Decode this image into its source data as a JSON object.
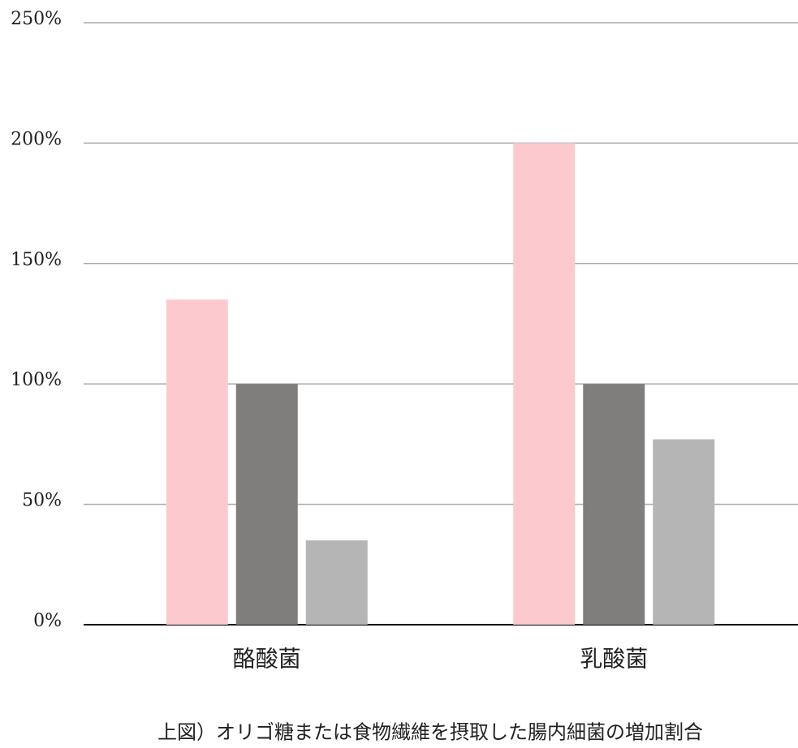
{
  "chart_data": {
    "type": "bar",
    "caption": "上図）オリゴ糖または食物繊維を摂取した腸内細菌の増加割合",
    "categories": [
      "酪酸菌",
      "乳酸菌"
    ],
    "series": [
      {
        "color": "#fccace",
        "values": [
          135,
          200
        ]
      },
      {
        "color": "#7f7e7c",
        "values": [
          100,
          100
        ]
      },
      {
        "color": "#b5b5b5",
        "values": [
          35,
          77
        ]
      }
    ],
    "ylim": [
      0,
      250
    ],
    "yticks": [
      {
        "value": 0,
        "label": "0%"
      },
      {
        "value": 50,
        "label": "50%"
      },
      {
        "value": 100,
        "label": "100%"
      },
      {
        "value": 150,
        "label": "150%"
      },
      {
        "value": 200,
        "label": "200%"
      },
      {
        "value": 250,
        "label": "250%"
      }
    ],
    "grid": true
  }
}
